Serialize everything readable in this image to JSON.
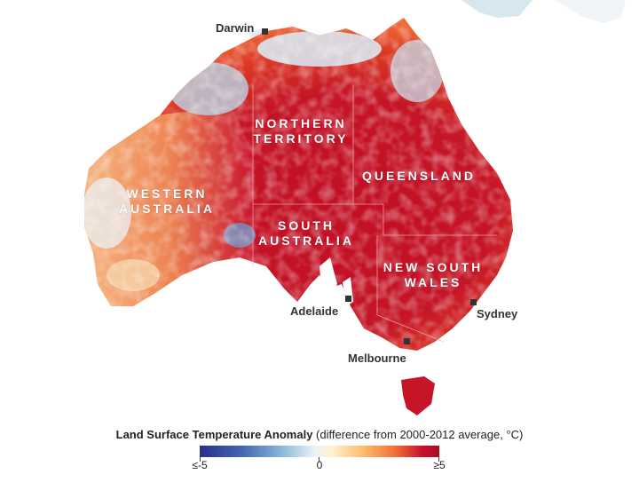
{
  "map": {
    "states": [
      {
        "id": "wa",
        "label_lines": [
          "WESTERN",
          "AUSTRALIA"
        ]
      },
      {
        "id": "nt",
        "label_lines": [
          "NORTHERN",
          "TERRITORY"
        ]
      },
      {
        "id": "sa",
        "label_lines": [
          "SOUTH",
          "AUSTRALIA"
        ]
      },
      {
        "id": "qld",
        "label_lines": [
          "QUEENSLAND"
        ]
      },
      {
        "id": "nsw",
        "label_lines": [
          "NEW SOUTH",
          "WALES"
        ]
      }
    ],
    "cities": [
      "Darwin",
      "Adelaide",
      "Sydney",
      "Melbourne"
    ]
  },
  "legend": {
    "title_bold": "Land Surface Temperature Anomaly",
    "title_rest": " (difference from 2000-2012 average, °C)",
    "min_label": "≤-5",
    "mid_label": "0",
    "max_label": "≥5",
    "range": [
      -5,
      5
    ],
    "colors": {
      "cold": "#2c2d8c",
      "neutral": "#f4f8f6",
      "hot": "#a50f25"
    }
  }
}
